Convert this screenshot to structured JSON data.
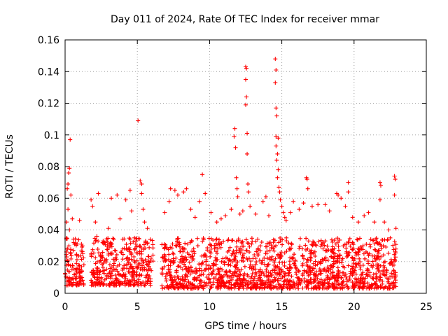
{
  "chart_data": {
    "type": "scatter",
    "title": "Day 011 of 2024, Rate Of TEC Index for receiver mmar",
    "xlabel": "GPS time / hours",
    "ylabel": "ROTI / TECUs",
    "xlim": [
      0,
      25
    ],
    "ylim": [
      0,
      0.16
    ],
    "x_ticks": [
      "0",
      "5",
      "10",
      "15",
      "20",
      "25"
    ],
    "y_ticks": [
      "0",
      "0.02",
      "0.04",
      "0.06",
      "0.08",
      "0.1",
      "0.12",
      "0.14",
      "0.16"
    ],
    "grid": true,
    "marker": "plus",
    "color": "#ff0000",
    "series": [
      {
        "name": "ROTI",
        "points": [
          [
            0.35,
            0.097
          ],
          [
            0.3,
            0.079
          ],
          [
            0.25,
            0.076
          ],
          [
            0.2,
            0.069
          ],
          [
            0.15,
            0.066
          ],
          [
            0.4,
            0.062
          ],
          [
            0.2,
            0.053
          ],
          [
            0.5,
            0.047
          ],
          [
            0.1,
            0.045
          ],
          [
            0.3,
            0.04
          ],
          [
            0.6,
            0.032
          ],
          [
            0.15,
            0.028
          ],
          [
            0.8,
            0.024
          ],
          [
            1.0,
            0.046
          ],
          [
            1.2,
            0.03
          ],
          [
            1.3,
            0.018
          ],
          [
            1.8,
            0.059
          ],
          [
            1.9,
            0.055
          ],
          [
            2.1,
            0.045
          ],
          [
            2.3,
            0.063
          ],
          [
            2.2,
            0.036
          ],
          [
            2.6,
            0.032
          ],
          [
            3.2,
            0.06
          ],
          [
            3.0,
            0.041
          ],
          [
            3.6,
            0.062
          ],
          [
            3.8,
            0.047
          ],
          [
            4.2,
            0.059
          ],
          [
            4.5,
            0.065
          ],
          [
            4.6,
            0.052
          ],
          [
            4.8,
            0.035
          ],
          [
            5.05,
            0.109
          ],
          [
            5.2,
            0.071
          ],
          [
            5.3,
            0.069
          ],
          [
            5.3,
            0.063
          ],
          [
            5.4,
            0.053
          ],
          [
            5.5,
            0.045
          ],
          [
            5.7,
            0.041
          ],
          [
            5.9,
            0.034
          ],
          [
            6.9,
            0.051
          ],
          [
            7.2,
            0.058
          ],
          [
            7.3,
            0.066
          ],
          [
            7.6,
            0.065
          ],
          [
            7.8,
            0.062
          ],
          [
            8.2,
            0.064
          ],
          [
            8.4,
            0.066
          ],
          [
            8.7,
            0.053
          ],
          [
            9.0,
            0.048
          ],
          [
            9.3,
            0.058
          ],
          [
            9.5,
            0.075
          ],
          [
            9.7,
            0.063
          ],
          [
            10.1,
            0.051
          ],
          [
            10.5,
            0.045
          ],
          [
            10.8,
            0.047
          ],
          [
            11.1,
            0.049
          ],
          [
            11.5,
            0.053
          ],
          [
            11.7,
            0.099
          ],
          [
            11.75,
            0.104
          ],
          [
            11.8,
            0.092
          ],
          [
            11.85,
            0.073
          ],
          [
            11.9,
            0.066
          ],
          [
            11.95,
            0.061
          ],
          [
            12.1,
            0.05
          ],
          [
            12.3,
            0.052
          ],
          [
            12.5,
            0.143
          ],
          [
            12.55,
            0.142
          ],
          [
            12.5,
            0.135
          ],
          [
            12.55,
            0.124
          ],
          [
            12.5,
            0.119
          ],
          [
            12.6,
            0.101
          ],
          [
            12.6,
            0.088
          ],
          [
            12.65,
            0.069
          ],
          [
            12.7,
            0.064
          ],
          [
            12.8,
            0.055
          ],
          [
            13.2,
            0.05
          ],
          [
            13.7,
            0.058
          ],
          [
            13.9,
            0.061
          ],
          [
            14.1,
            0.049
          ],
          [
            14.55,
            0.148
          ],
          [
            14.6,
            0.141
          ],
          [
            14.55,
            0.133
          ],
          [
            14.6,
            0.117
          ],
          [
            14.65,
            0.112
          ],
          [
            14.6,
            0.099
          ],
          [
            14.75,
            0.098
          ],
          [
            14.6,
            0.093
          ],
          [
            14.7,
            0.088
          ],
          [
            14.65,
            0.084
          ],
          [
            14.75,
            0.078
          ],
          [
            14.7,
            0.073
          ],
          [
            14.8,
            0.067
          ],
          [
            14.85,
            0.064
          ],
          [
            14.9,
            0.059
          ],
          [
            15.0,
            0.055
          ],
          [
            15.1,
            0.051
          ],
          [
            15.2,
            0.048
          ],
          [
            15.3,
            0.046
          ],
          [
            15.6,
            0.051
          ],
          [
            15.8,
            0.058
          ],
          [
            16.2,
            0.053
          ],
          [
            16.5,
            0.057
          ],
          [
            16.7,
            0.073
          ],
          [
            16.75,
            0.072
          ],
          [
            16.8,
            0.066
          ],
          [
            17.1,
            0.055
          ],
          [
            17.5,
            0.056
          ],
          [
            18.0,
            0.056
          ],
          [
            18.3,
            0.052
          ],
          [
            18.8,
            0.063
          ],
          [
            18.9,
            0.062
          ],
          [
            19.1,
            0.06
          ],
          [
            19.4,
            0.055
          ],
          [
            19.6,
            0.07
          ],
          [
            19.6,
            0.064
          ],
          [
            19.9,
            0.048
          ],
          [
            20.3,
            0.045
          ],
          [
            20.7,
            0.049
          ],
          [
            21.0,
            0.051
          ],
          [
            21.4,
            0.045
          ],
          [
            21.8,
            0.07
          ],
          [
            21.85,
            0.068
          ],
          [
            21.8,
            0.059
          ],
          [
            22.1,
            0.045
          ],
          [
            22.4,
            0.04
          ],
          [
            22.8,
            0.074
          ],
          [
            22.85,
            0.072
          ],
          [
            22.8,
            0.062
          ],
          [
            22.9,
            0.041
          ],
          [
            22.9,
            0.028
          ]
        ]
      }
    ],
    "dense_segments": [
      {
        "x": [
          0.0,
          1.3
        ],
        "y": [
          0.005,
          0.035
        ]
      },
      {
        "x": [
          1.8,
          6.1
        ],
        "y": [
          0.005,
          0.035
        ]
      },
      {
        "x": [
          6.7,
          22.9
        ],
        "y": [
          0.003,
          0.035
        ]
      }
    ]
  }
}
